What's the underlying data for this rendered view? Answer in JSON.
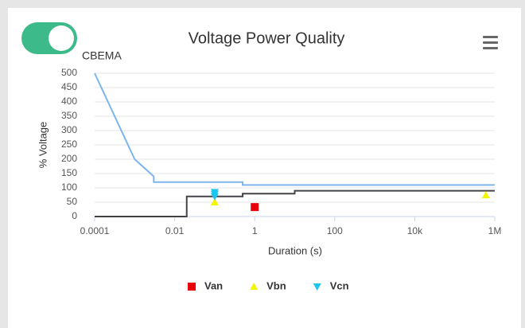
{
  "chart_data": {
    "type": "scatter",
    "title": "Voltage Power Quality",
    "toggle_label": "CBEMA",
    "xlabel": "Duration (s)",
    "ylabel": "% Voltage",
    "xscale": "log",
    "xlim": [
      0.0001,
      1000000
    ],
    "xticks": [
      0.0001,
      0.01,
      1,
      100,
      {
        "value": 10000,
        "label": "10k"
      },
      {
        "value": 1000000,
        "label": "1M"
      }
    ],
    "ylim": [
      0,
      500
    ],
    "yticks": [
      0,
      50,
      100,
      150,
      200,
      250,
      300,
      350,
      400,
      450,
      500
    ],
    "grid": true,
    "legend": "bottom",
    "curves": [
      {
        "color": "#7cb5ec",
        "x": [
          0.0001,
          0.001,
          0.003,
          0.003,
          0.5,
          0.5,
          1000000
        ],
        "values": [
          500,
          200,
          140,
          120,
          120,
          110,
          110
        ]
      },
      {
        "color": "#434348",
        "x": [
          0.0001,
          0.02,
          0.02,
          0.5,
          0.5,
          10,
          10,
          1000000
        ],
        "values": [
          0,
          0,
          70,
          70,
          80,
          80,
          90,
          90
        ]
      }
    ],
    "series": [
      {
        "name": "Van",
        "color": "#e8000b",
        "marker": "square",
        "x": [
          1
        ],
        "values": [
          33
        ]
      },
      {
        "name": "Vbn",
        "color": "#f5f500",
        "marker": "triangle",
        "x": [
          0.1,
          600000
        ],
        "values": [
          50,
          75
        ]
      },
      {
        "name": "Vcn",
        "color": "#1ac6f0",
        "marker": "triangle-down",
        "x": [
          0.1,
          0.1,
          0.1
        ],
        "values": [
          85,
          78,
          70
        ]
      }
    ]
  }
}
